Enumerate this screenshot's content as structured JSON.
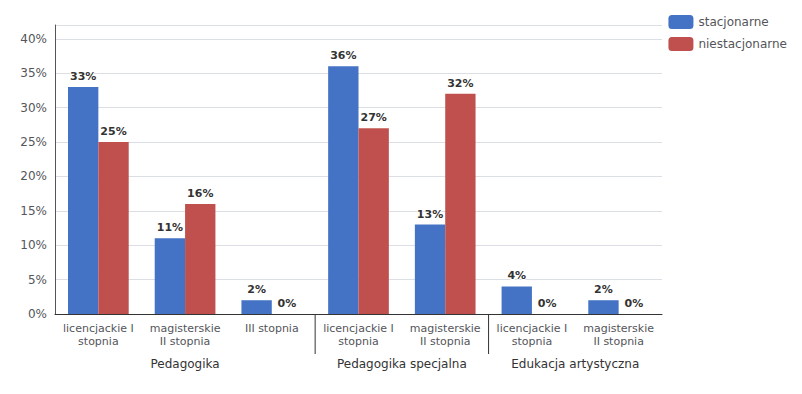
{
  "chart_data": {
    "type": "bar",
    "groups": [
      {
        "label": "Pedagogika",
        "categories": [
          "licencjackie I\nstopnia",
          "magisterskie\nII stopnia",
          "III stopnia"
        ]
      },
      {
        "label": "Pedagogika specjalna",
        "categories": [
          "licencjackie I\nstopnia",
          "magisterskie\nII stopnia"
        ]
      },
      {
        "label": "Edukacja artystyczna",
        "categories": [
          "licencjackie I\nstopnia",
          "magisterskie\nII stopnia"
        ]
      }
    ],
    "series": [
      {
        "name": "stacjonarne",
        "color": "#4472c4",
        "values": [
          33,
          11,
          2,
          36,
          13,
          4,
          2
        ],
        "value_labels": [
          "33%",
          "11%",
          "2%",
          "36%",
          "13%",
          "4%",
          "2%"
        ]
      },
      {
        "name": "niestacjonarne",
        "color": "#c0504d",
        "values": [
          25,
          16,
          0,
          27,
          32,
          0,
          0
        ],
        "value_labels": [
          "25%",
          "16%",
          "0%",
          "27%",
          "32%",
          "0%",
          "0%"
        ]
      }
    ],
    "ylim": [
      0,
      42
    ],
    "yticks": [
      {
        "value": 0,
        "label": "0%"
      },
      {
        "value": 5,
        "label": "5%"
      },
      {
        "value": 10,
        "label": "10%"
      },
      {
        "value": 15,
        "label": "15%"
      },
      {
        "value": 20,
        "label": "20%"
      },
      {
        "value": 25,
        "label": "25%"
      },
      {
        "value": 30,
        "label": "30%"
      },
      {
        "value": 35,
        "label": "35%"
      },
      {
        "value": 40,
        "label": "40%"
      }
    ],
    "grid": true,
    "legend": "upper right",
    "data_labels": true
  }
}
